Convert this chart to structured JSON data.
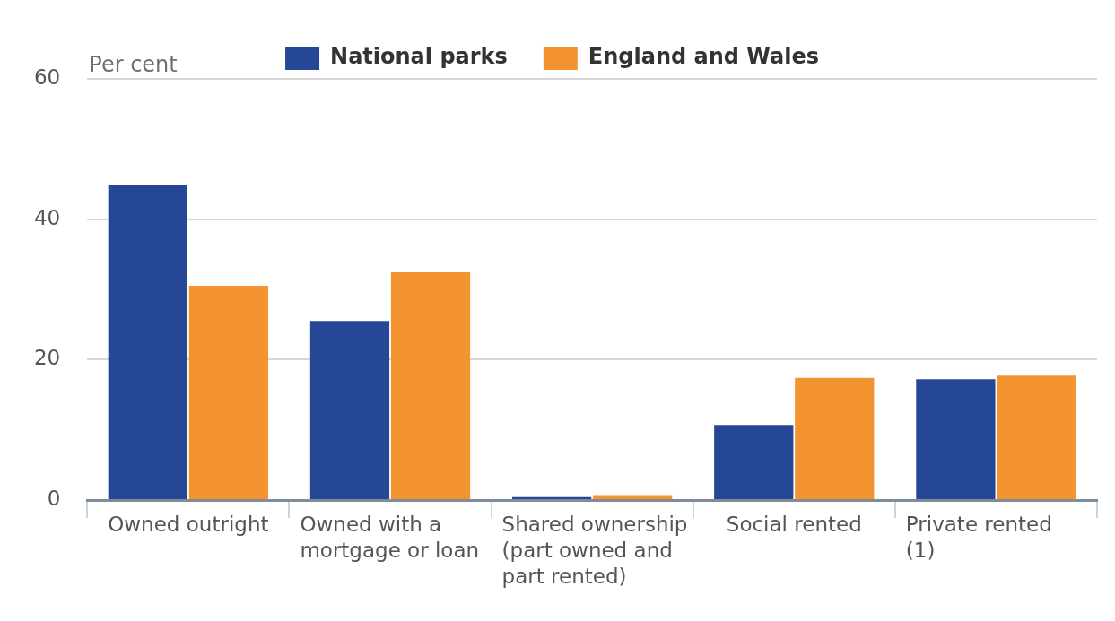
{
  "chart_data": {
    "type": "bar",
    "ylabel": "Per cent",
    "categories": [
      "Owned outright",
      "Owned with a mortgage or loan",
      "Shared ownership (part owned and part rented)",
      "Social rented",
      "Private rented (1)"
    ],
    "series": [
      {
        "name": "National parks",
        "color": "#264796",
        "values": [
          44.9,
          25.5,
          0.4,
          10.7,
          17.2
        ]
      },
      {
        "name": "England and Wales",
        "color": "#f39431",
        "values": [
          30.5,
          32.5,
          0.7,
          17.4,
          17.7
        ]
      }
    ],
    "ylim": [
      0,
      60
    ],
    "yticks": [
      0,
      20,
      40,
      60
    ],
    "grid": "y",
    "legend": "top"
  }
}
